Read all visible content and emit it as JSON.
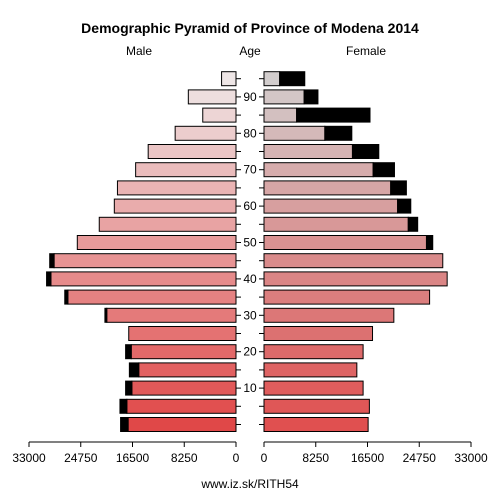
{
  "chart_data": {
    "type": "bar",
    "title": "Demographic Pyramid of Province of Modena 2014",
    "left_label": "Male",
    "center_label": "Age",
    "right_label": "Female",
    "x_ticks_left": [
      "33000",
      "24750",
      "16500",
      "8250",
      "0"
    ],
    "x_ticks_right": [
      "0",
      "8250",
      "16500",
      "24750",
      "33000"
    ],
    "x_range": [
      0,
      33000
    ],
    "age_tick_labels": [
      "10",
      "20",
      "30",
      "40",
      "50",
      "60",
      "70",
      "80",
      "90"
    ],
    "age_groups": [
      "0-4",
      "5-9",
      "10-14",
      "15-19",
      "20-24",
      "25-29",
      "30-34",
      "35-39",
      "40-44",
      "45-49",
      "50-54",
      "55-59",
      "60-64",
      "65-69",
      "70-74",
      "75-79",
      "80-84",
      "85-89",
      "90-94",
      "95+"
    ],
    "series": [
      {
        "name": "Male",
        "values": [
          17200,
          17400,
          16600,
          15500,
          16700,
          17100,
          20600,
          26800,
          29500,
          29000,
          25300,
          21800,
          19400,
          18900,
          16000,
          14000,
          9700,
          5300,
          7600,
          2300
        ],
        "excess": [
          1200,
          1100,
          1000,
          1500,
          900,
          0,
          300,
          500,
          700,
          700,
          0,
          0,
          0,
          0,
          0,
          0,
          0,
          0,
          0,
          0
        ]
      },
      {
        "name": "Female",
        "values": [
          16600,
          16800,
          15800,
          14800,
          15800,
          17300,
          20700,
          26400,
          29200,
          28500,
          25900,
          23000,
          21300,
          20200,
          17400,
          14100,
          9700,
          5200,
          6400,
          2500
        ],
        "excess": [
          0,
          0,
          0,
          0,
          0,
          0,
          0,
          0,
          0,
          0,
          1000,
          1500,
          2100,
          2500,
          3400,
          4200,
          4300,
          11700,
          2200,
          4000
        ]
      }
    ]
  },
  "footer": "www.iz.sk/RITH54"
}
